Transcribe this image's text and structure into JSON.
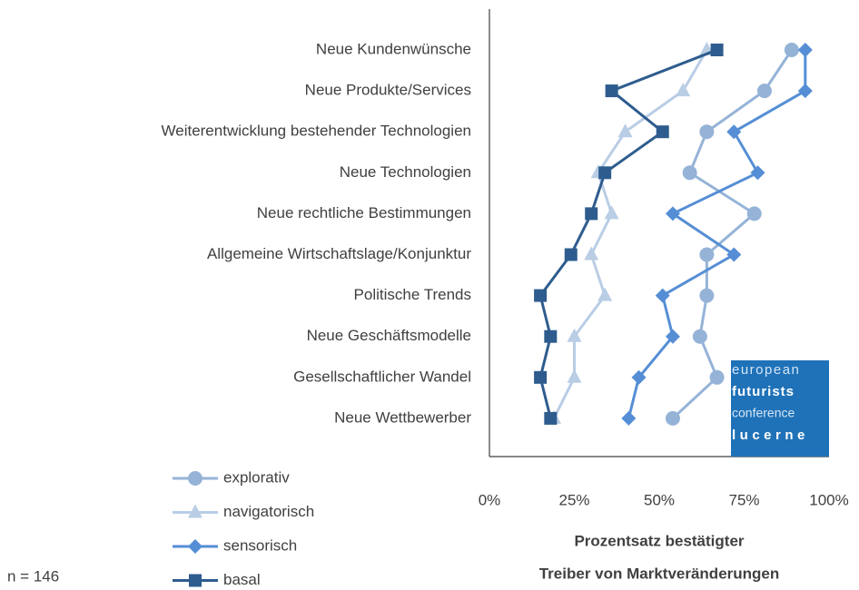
{
  "chart_data": {
    "type": "line",
    "categories": [
      "Neue Kundenwünsche",
      "Neue Produkte/Services",
      "Weiterentwicklung  bestehender Technologien",
      "Neue Technologien",
      "Neue rechtliche Bestimmungen",
      "Allgemeine Wirtschaftslage/Konjunktur",
      "Politische Trends",
      "Neue Geschäftsmodelle",
      "Gesellschaftlicher Wandel",
      "Neue Wettbewerber"
    ],
    "series": [
      {
        "name": "explorativ",
        "color": "#95b3d7",
        "marker": "circle",
        "values": [
          89,
          81,
          64,
          59,
          78,
          64,
          64,
          62,
          67,
          54
        ]
      },
      {
        "name": "navigatorisch",
        "color": "#b9cde5",
        "marker": "triangle",
        "values": [
          64,
          57,
          40,
          32,
          36,
          30,
          34,
          25,
          25,
          19
        ]
      },
      {
        "name": "sensorisch",
        "color": "#558ed5",
        "marker": "diamond",
        "values": [
          93,
          93,
          72,
          79,
          54,
          72,
          51,
          54,
          44,
          41
        ]
      },
      {
        "name": "basal",
        "color": "#2e5c8e",
        "marker": "square",
        "values": [
          67,
          36,
          51,
          34,
          30,
          24,
          15,
          18,
          15,
          18
        ]
      }
    ],
    "xlim": [
      0,
      100
    ],
    "xticks": [
      {
        "value": 0,
        "label": "0%"
      },
      {
        "value": 25,
        "label": "25%"
      },
      {
        "value": 50,
        "label": "50%"
      },
      {
        "value": 75,
        "label": "75%"
      },
      {
        "value": 100,
        "label": "100%"
      }
    ],
    "xlabel": [
      "Prozentsatz bestätigter",
      "Treiber von Marktveränderungen"
    ],
    "note": "n = 146",
    "logo": [
      "european",
      "futurists",
      "conference",
      "lucerne"
    ]
  }
}
